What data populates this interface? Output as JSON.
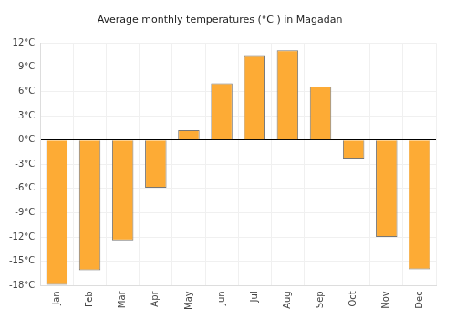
{
  "chart_data": {
    "type": "bar",
    "title": "Average monthly temperatures (°C ) in Magadan",
    "categories": [
      "Jan",
      "Feb",
      "Mar",
      "Apr",
      "May",
      "Jun",
      "Jul",
      "Aug",
      "Sep",
      "Oct",
      "Nov",
      "Dec"
    ],
    "values": [
      -17.9,
      -16.1,
      -12.4,
      -5.9,
      1.2,
      7.0,
      10.5,
      11.1,
      6.6,
      -2.3,
      -12.0,
      -16.0
    ],
    "color": "#fdab35",
    "ylim": [
      -18,
      12
    ],
    "yticks": [
      {
        "value": -18,
        "label": "-18°C"
      },
      {
        "value": -15,
        "label": "-15°C"
      },
      {
        "value": -12,
        "label": "-12°C"
      },
      {
        "value": -9,
        "label": "-9°C"
      },
      {
        "value": -6,
        "label": "-6°C"
      },
      {
        "value": -3,
        "label": "-3°C"
      },
      {
        "value": 0,
        "label": "0°C"
      },
      {
        "value": 3,
        "label": "3°C"
      },
      {
        "value": 6,
        "label": "6°C"
      },
      {
        "value": 9,
        "label": "9°C"
      },
      {
        "value": 12,
        "label": "12°C"
      }
    ],
    "grid": true
  }
}
